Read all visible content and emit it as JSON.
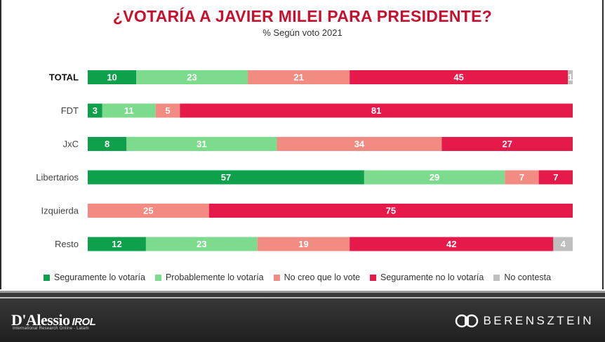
{
  "title": "¿VOTARÍA A JAVIER MILEI PARA PRESIDENTE?",
  "subtitle": "% Según voto 2021",
  "colors": {
    "seguramente_si": "#0ea04b",
    "probablemente_si": "#7ddb8d",
    "no_creo": "#f28b82",
    "seguramente_no": "#e6194b",
    "no_contesta": "#bfbfbf"
  },
  "chart_data": {
    "type": "bar",
    "orientation": "horizontal",
    "stacked": true,
    "categories": [
      "TOTAL",
      "FDT",
      "JxC",
      "Libertarios",
      "Izquierda",
      "Resto"
    ],
    "series": [
      {
        "name": "Seguramente lo votaría",
        "color": "#0ea04b",
        "values": [
          10,
          3,
          8,
          57,
          0,
          12
        ]
      },
      {
        "name": "Probablemente lo votaría",
        "color": "#7ddb8d",
        "values": [
          23,
          11,
          31,
          29,
          0,
          23
        ]
      },
      {
        "name": "No creo que lo vote",
        "color": "#f28b82",
        "values": [
          21,
          5,
          34,
          7,
          25,
          19
        ]
      },
      {
        "name": "Seguramente no lo votaría",
        "color": "#e6194b",
        "values": [
          45,
          81,
          27,
          7,
          75,
          42
        ]
      },
      {
        "name": "No contesta",
        "color": "#bfbfbf",
        "values": [
          1,
          0,
          0,
          0,
          0,
          4
        ]
      }
    ],
    "legend_position": "bottom",
    "grid": false
  },
  "footer": {
    "left_logo": "D'Alessio",
    "left_logo_suffix": "IROL",
    "left_logo_tagline": "International Research Online - Latam",
    "right_logo": "BERENSZTEIN"
  }
}
